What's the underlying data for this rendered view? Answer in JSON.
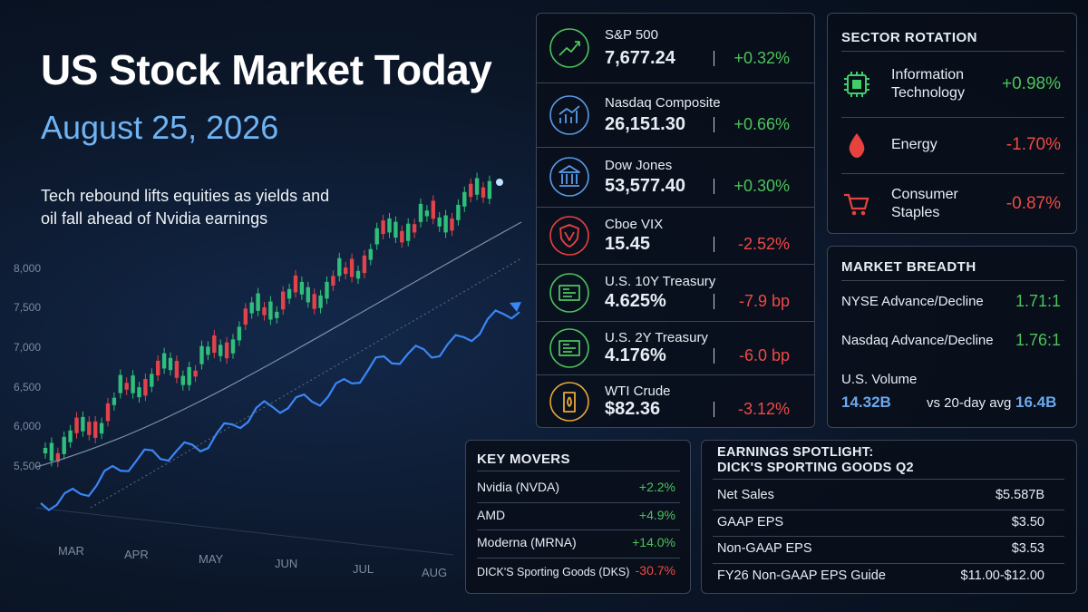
{
  "header": {
    "title": "US Stock Market Today",
    "date": "August 25, 2026",
    "subtitle": [
      "Tech rebound lifts equities as yields and",
      "oil fall ahead of Nvidia earnings"
    ]
  },
  "background_chart": {
    "y_labels": [
      "8,000",
      "7,500",
      "7,000",
      "6,500",
      "6,000",
      "5,500"
    ],
    "x_labels": [
      "MAR",
      "APR",
      "MAY",
      "JUN",
      "JUL",
      "AUG"
    ]
  },
  "indices": [
    {
      "name": "S&P 500",
      "value": "7,677.24",
      "change": "+0.32%"
    },
    {
      "name": "Nasdaq Composite",
      "value": "26,151.30",
      "change": "+0.66%"
    },
    {
      "name": "Dow Jones",
      "value": "53,577.40",
      "change": "+0.30%"
    },
    {
      "name": "Cboe VIX",
      "value": "15.45",
      "change": "-2.52%"
    },
    {
      "name": "U.S. 10Y Treasury",
      "value": "4.625%",
      "change": "-7.9 bp"
    },
    {
      "name": "U.S. 2Y Treasury",
      "value": "4.176%",
      "change": "-6.0 bp"
    },
    {
      "name": "WTI Crude",
      "value": "$82.36",
      "change": "-3.12%"
    }
  ],
  "sector_rotation": {
    "title": "SECTOR ROTATION",
    "rows": [
      {
        "name": [
          "Information",
          "Technology"
        ],
        "change": "+0.98%"
      },
      {
        "name": [
          "Energy"
        ],
        "change": "-1.70%"
      },
      {
        "name": [
          "Consumer",
          "Staples"
        ],
        "change": "-0.87%"
      }
    ]
  },
  "market_breadth": {
    "title": "MARKET BREADTH",
    "rows": [
      {
        "label": "NYSE Advance/Decline",
        "value": "1.71:1"
      },
      {
        "label": "Nasdaq Advance/Decline",
        "value": "1.76:1"
      }
    ],
    "volume": {
      "label": "U.S. Volume",
      "value": "14.32B",
      "compare": "vs 20-day avg",
      "average": "16.4B"
    }
  },
  "key_movers": {
    "title": "KEY MOVERS",
    "rows": [
      {
        "name": "Nvidia (NVDA)",
        "change": "+2.2%"
      },
      {
        "name": "AMD",
        "change": "+4.9%"
      },
      {
        "name": "Moderna (MRNA)",
        "change": "+14.0%"
      },
      {
        "name": "DICK'S Sporting Goods (DKS)",
        "change": "-30.7%"
      }
    ]
  },
  "earnings": {
    "title": [
      "EARNINGS SPOTLIGHT:",
      "DICK'S SPORTING GOODS Q2"
    ],
    "rows": [
      {
        "label": "Net Sales",
        "value": "$5.587B"
      },
      {
        "label": "GAAP EPS",
        "value": "$3.50"
      },
      {
        "label": "Non-GAAP EPS",
        "value": "$3.53"
      },
      {
        "label": "FY26 Non-GAAP EPS Guide",
        "value": "$11.00-$12.00"
      }
    ]
  }
}
